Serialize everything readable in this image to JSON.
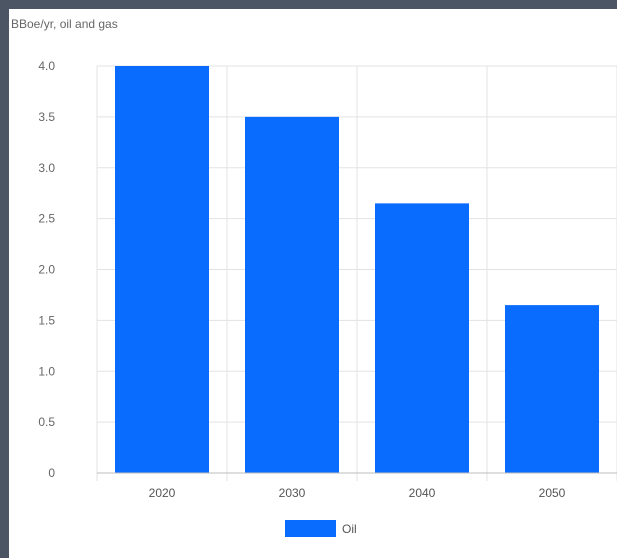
{
  "chart_data": {
    "type": "bar",
    "unit_label": "BBoe/yr, oil and gas",
    "categories": [
      "2020",
      "2030",
      "2040",
      "2050"
    ],
    "series": [
      {
        "name": "Oil",
        "values": [
          4.0,
          3.5,
          2.65,
          1.65
        ],
        "color": "#0A6CFF"
      }
    ],
    "ylim": [
      0,
      4.0
    ],
    "yticks": [
      "0",
      "0.5",
      "1.0",
      "1.5",
      "2.0",
      "2.5",
      "3.0",
      "3.5",
      "4.0"
    ],
    "grid": true,
    "legend_position": "bottom"
  }
}
